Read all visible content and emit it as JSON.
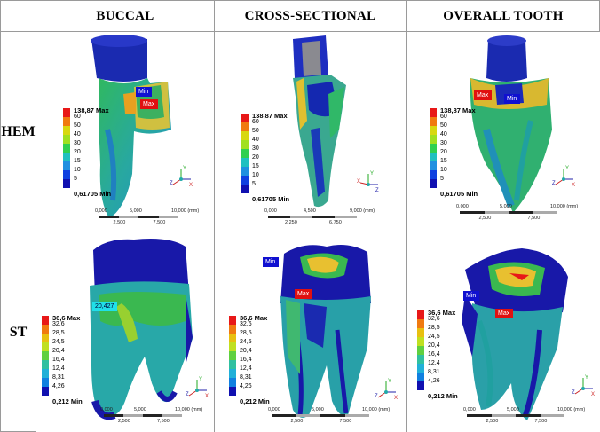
{
  "headers": {
    "buccal": "BUCCAL",
    "cross": "CROSS-SECTIONAL",
    "overall": "OVERALL TOOTH"
  },
  "rows": {
    "hem": "HEM",
    "st": "ST"
  },
  "hem_legend": {
    "max": "138,87 Max",
    "levels": [
      "60",
      "50",
      "40",
      "30",
      "20",
      "15",
      "10",
      "5"
    ],
    "min": "0,61705 Min",
    "colors": [
      "#e81818",
      "#f07a10",
      "#d8d810",
      "#a0e020",
      "#30d050",
      "#20c0c0",
      "#2090e0",
      "#1040e0",
      "#1010b0"
    ]
  },
  "st_legend": {
    "max": "36,6 Max",
    "levels": [
      "32,6",
      "28,5",
      "24,5",
      "20,4",
      "16,4",
      "12,4",
      "8,31",
      "4,26"
    ],
    "min": "0,212 Min",
    "colors": [
      "#e81818",
      "#f07a10",
      "#e8c010",
      "#c0e020",
      "#60d040",
      "#30c0a0",
      "#20b0d8",
      "#1080e0",
      "#1010b0"
    ]
  },
  "scales": {
    "hem_buccal": {
      "top": [
        "0,000",
        "5,000",
        "10,000 (mm)"
      ],
      "bottom": [
        "2,500",
        "7,500"
      ]
    },
    "hem_cross": {
      "top": [
        "0,000",
        "4,500",
        "9,000 (mm)"
      ],
      "bottom": [
        "2,250",
        "6,750"
      ]
    },
    "hem_overall": {
      "top": [
        "0,000",
        "5,000",
        "10,000 (mm)"
      ],
      "bottom": [
        "2,500",
        "7,500"
      ]
    },
    "st_buccal": {
      "top": [
        "0,000",
        "5,000",
        "10,000 (mm)"
      ],
      "bottom": [
        "2,500",
        "7,500"
      ]
    },
    "st_cross": {
      "top": [
        "0,000",
        "5,000",
        "10,000 (mm)"
      ],
      "bottom": [
        "2,500",
        "7,500"
      ]
    },
    "st_overall": {
      "top": [
        "0,000",
        "5,000",
        "10,000 (mm)"
      ],
      "bottom": [
        "2,500",
        "7,500"
      ]
    }
  },
  "tags": {
    "min": "Min",
    "max": "Max",
    "probe": "20,427"
  },
  "axes": {
    "x": "X",
    "y": "Y",
    "z": "Z"
  },
  "colors": {
    "border": "#9a9a9a",
    "dark_blue": "#1818a8",
    "teal": "#2aa0a0",
    "green": "#30b050"
  }
}
